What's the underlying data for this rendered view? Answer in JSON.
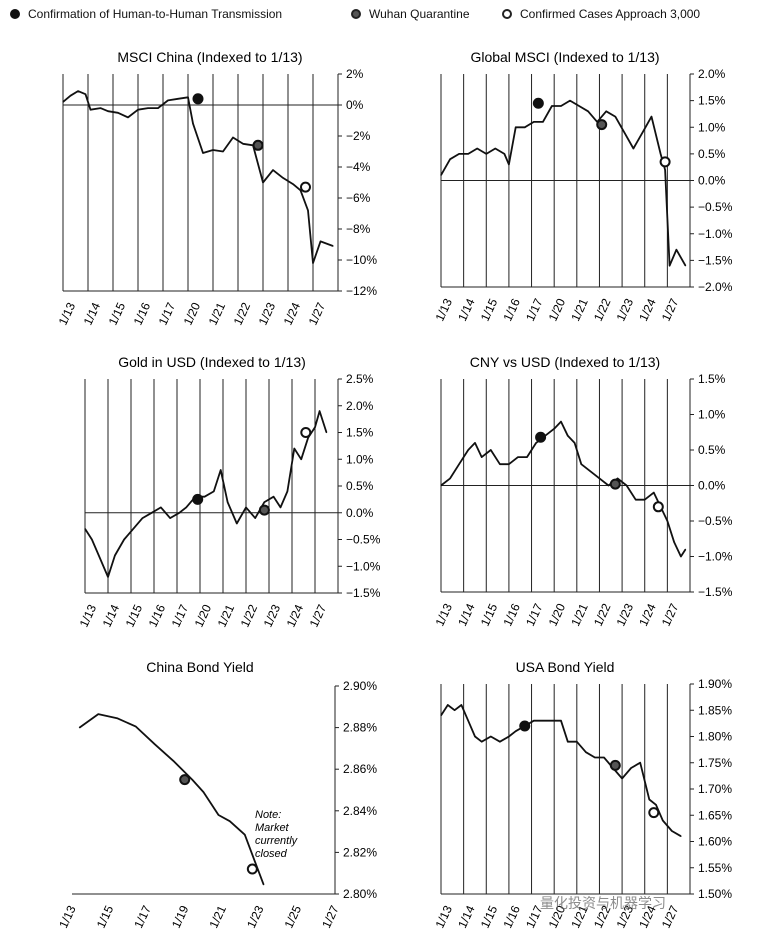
{
  "legend": [
    {
      "label": "Confirmation of Human-to-Human Transmission",
      "marker": "filled"
    },
    {
      "label": "Wuhan Quarantine",
      "marker": "mid"
    },
    {
      "label": "Confirmed Cases Approach 3,000",
      "marker": "ring"
    }
  ],
  "watermark": "量化投资与机器学习",
  "chart_data": [
    {
      "type": "line",
      "title": "MSCI China (Indexed to 1/13)",
      "dates": [
        "1/13",
        "1/14",
        "1/15",
        "1/16",
        "1/17",
        "1/20",
        "1/21",
        "1/22",
        "1/23",
        "1/24",
        "1/27"
      ],
      "ylim": [
        -12,
        2
      ],
      "yticks": [
        2,
        0,
        -2,
        -4,
        -6,
        -8,
        -10,
        -12
      ],
      "ytick_labels": [
        "2%",
        "0%",
        "−2%",
        "−4%",
        "−6%",
        "−8%",
        "−10%",
        "−12%"
      ],
      "series": [
        {
          "x": [
            0,
            0.3,
            0.6,
            0.9,
            1.1,
            1.5,
            1.8,
            2.2,
            2.6,
            3.0,
            3.4,
            3.8,
            4.2,
            4.6,
            5.0,
            5.2,
            5.6,
            6.0,
            6.4,
            6.8,
            7.2,
            7.6,
            8.0,
            8.4,
            8.8,
            9.2,
            9.5,
            9.8,
            10.0,
            10.3,
            10.8
          ],
          "y": [
            0.2,
            0.6,
            0.9,
            0.7,
            -0.3,
            -0.2,
            -0.4,
            -0.5,
            -0.8,
            -0.3,
            -0.2,
            -0.2,
            0.3,
            0.4,
            0.5,
            -1.2,
            -3.1,
            -2.9,
            -3.0,
            -2.1,
            -2.5,
            -2.6,
            -5.0,
            -4.2,
            -4.7,
            -5.1,
            -5.5,
            -6.8,
            -10.2,
            -8.8,
            -9.1
          ]
        }
      ],
      "markers": [
        {
          "x": 5.4,
          "y": 0.4,
          "type": "filled"
        },
        {
          "x": 7.8,
          "y": -2.6,
          "type": "mid"
        },
        {
          "x": 9.7,
          "y": -5.3,
          "type": "ring"
        }
      ]
    },
    {
      "type": "line",
      "title": "Global MSCI (Indexed to 1/13)",
      "dates": [
        "1/13",
        "1/14",
        "1/15",
        "1/16",
        "1/17",
        "1/20",
        "1/21",
        "1/22",
        "1/23",
        "1/24",
        "1/27"
      ],
      "ylim": [
        -2,
        2
      ],
      "yticks": [
        2,
        1.5,
        1,
        0.5,
        0,
        -0.5,
        -1,
        -1.5,
        -2
      ],
      "ytick_labels": [
        "2.0%",
        "1.5%",
        "1.0%",
        "0.5%",
        "0.0%",
        "−0.5%",
        "−1.0%",
        "−1.5%",
        "−2.0%"
      ],
      "series": [
        {
          "x": [
            0,
            0.4,
            0.8,
            1.2,
            1.6,
            2.0,
            2.4,
            2.8,
            3.0,
            3.3,
            3.7,
            4.1,
            4.5,
            4.9,
            5.3,
            5.7,
            6.1,
            6.5,
            6.9,
            7.3,
            7.7,
            8.1,
            8.5,
            8.9,
            9.3,
            9.7,
            9.9,
            10.1,
            10.4,
            10.8
          ],
          "y": [
            0.1,
            0.4,
            0.5,
            0.5,
            0.6,
            0.5,
            0.6,
            0.5,
            0.3,
            1.0,
            1.0,
            1.1,
            1.1,
            1.4,
            1.4,
            1.5,
            1.4,
            1.3,
            1.1,
            1.3,
            1.2,
            0.9,
            0.6,
            0.9,
            1.2,
            0.5,
            0.2,
            -1.6,
            -1.3,
            -1.6
          ]
        }
      ],
      "markers": [
        {
          "x": 4.3,
          "y": 1.45,
          "type": "filled"
        },
        {
          "x": 7.1,
          "y": 1.05,
          "type": "mid"
        },
        {
          "x": 9.9,
          "y": 0.35,
          "type": "ring"
        }
      ]
    },
    {
      "type": "line",
      "title": "Gold in USD (Indexed to 1/13)",
      "dates": [
        "1/13",
        "1/14",
        "1/15",
        "1/16",
        "1/17",
        "1/20",
        "1/21",
        "1/22",
        "1/23",
        "1/24",
        "1/27"
      ],
      "ylim": [
        -1.5,
        2.5
      ],
      "yticks": [
        2.5,
        2,
        1.5,
        1,
        0.5,
        0,
        -0.5,
        -1,
        -1.5
      ],
      "ytick_labels": [
        "2.5%",
        "2.0%",
        "1.5%",
        "1.0%",
        "0.5%",
        "0.0%",
        "−0.5%",
        "−1.0%",
        "−1.5%"
      ],
      "series": [
        {
          "x": [
            0,
            0.3,
            0.6,
            0.9,
            1.0,
            1.3,
            1.7,
            2.1,
            2.5,
            2.9,
            3.3,
            3.7,
            4.1,
            4.4,
            4.8,
            5.2,
            5.6,
            5.9,
            6.2,
            6.6,
            7.0,
            7.4,
            7.8,
            8.2,
            8.5,
            8.8,
            9.1,
            9.4,
            9.7,
            10.0,
            10.2,
            10.5
          ],
          "y": [
            -0.3,
            -0.5,
            -0.8,
            -1.1,
            -1.2,
            -0.8,
            -0.5,
            -0.3,
            -0.1,
            0.0,
            0.1,
            -0.1,
            0.0,
            0.1,
            0.3,
            0.3,
            0.4,
            0.8,
            0.2,
            -0.2,
            0.1,
            -0.1,
            0.2,
            0.3,
            0.1,
            0.4,
            1.2,
            1.0,
            1.4,
            1.6,
            1.9,
            1.5
          ]
        }
      ],
      "markers": [
        {
          "x": 4.9,
          "y": 0.25,
          "type": "filled"
        },
        {
          "x": 7.8,
          "y": 0.05,
          "type": "mid"
        },
        {
          "x": 9.6,
          "y": 1.5,
          "type": "ring"
        }
      ]
    },
    {
      "type": "line",
      "title": "CNY vs USD (Indexed to 1/13)",
      "dates": [
        "1/13",
        "1/14",
        "1/15",
        "1/16",
        "1/17",
        "1/20",
        "1/21",
        "1/22",
        "1/23",
        "1/24",
        "1/27"
      ],
      "ylim": [
        -1.5,
        1.5
      ],
      "yticks": [
        1.5,
        1,
        0.5,
        0,
        -0.5,
        -1,
        -1.5
      ],
      "ytick_labels": [
        "1.5%",
        "1.0%",
        "0.5%",
        "0.0%",
        "−0.5%",
        "−1.0%",
        "−1.5%"
      ],
      "series": [
        {
          "x": [
            0,
            0.4,
            0.8,
            1.2,
            1.5,
            1.8,
            2.2,
            2.6,
            3.0,
            3.4,
            3.8,
            4.2,
            4.6,
            5.0,
            5.3,
            5.6,
            5.9,
            6.2,
            6.6,
            7.0,
            7.4,
            7.8,
            8.2,
            8.6,
            9.0,
            9.4,
            9.7,
            10.0,
            10.3,
            10.6,
            10.8
          ],
          "y": [
            0.0,
            0.1,
            0.3,
            0.5,
            0.6,
            0.4,
            0.5,
            0.3,
            0.3,
            0.4,
            0.4,
            0.6,
            0.7,
            0.8,
            0.9,
            0.7,
            0.6,
            0.3,
            0.2,
            0.1,
            0.0,
            0.1,
            0.0,
            -0.2,
            -0.2,
            -0.1,
            -0.3,
            -0.5,
            -0.8,
            -1.0,
            -0.9
          ]
        }
      ],
      "markers": [
        {
          "x": 4.4,
          "y": 0.68,
          "type": "filled"
        },
        {
          "x": 7.7,
          "y": 0.02,
          "type": "mid"
        },
        {
          "x": 9.6,
          "y": -0.3,
          "type": "ring"
        }
      ]
    },
    {
      "type": "line",
      "title": "China Bond Yield",
      "dates": [
        "1/13",
        "1/15",
        "1/17",
        "1/19",
        "1/21",
        "1/23",
        "1/25",
        "1/27"
      ],
      "ylim": [
        2.8,
        2.9
      ],
      "yticks": [
        2.9,
        2.88,
        2.86,
        2.84,
        2.82,
        2.8
      ],
      "ytick_labels": [
        "2.90%",
        "2.88%",
        "2.86%",
        "2.84%",
        "2.82%",
        "2.80%"
      ],
      "series": [
        {
          "x": [
            0.2,
            0.7,
            1.2,
            1.7,
            2.2,
            2.7,
            3.2,
            3.5,
            3.9,
            4.2,
            4.6,
            5.1
          ],
          "y": [
            2.88,
            2.8865,
            2.8845,
            2.8805,
            2.872,
            2.864,
            2.855,
            2.849,
            2.838,
            2.835,
            2.8285,
            2.8045
          ]
        }
      ],
      "markers": [
        {
          "x": 3.0,
          "y": 2.855,
          "type": "mid"
        },
        {
          "x": 4.8,
          "y": 2.812,
          "type": "ring"
        }
      ],
      "note": "Note:\nMarket\ncurrently\nclosed"
    },
    {
      "type": "line",
      "title": "USA Bond Yield",
      "dates": [
        "1/13",
        "1/14",
        "1/15",
        "1/16",
        "1/17",
        "1/20",
        "1/21",
        "1/22",
        "1/23",
        "1/24",
        "1/27"
      ],
      "ylim": [
        1.5,
        1.9
      ],
      "yticks": [
        1.9,
        1.85,
        1.8,
        1.75,
        1.7,
        1.65,
        1.6,
        1.55,
        1.5
      ],
      "ytick_labels": [
        "1.90%",
        "1.85%",
        "1.80%",
        "1.75%",
        "1.70%",
        "1.65%",
        "1.60%",
        "1.55%",
        "1.50%"
      ],
      "series": [
        {
          "x": [
            0,
            0.3,
            0.6,
            0.9,
            1.2,
            1.5,
            1.8,
            2.2,
            2.6,
            3.0,
            3.3,
            3.7,
            4.1,
            4.5,
            4.9,
            5.3,
            5.6,
            6.0,
            6.4,
            6.8,
            7.2,
            7.6,
            8.0,
            8.4,
            8.8,
            9.2,
            9.5,
            9.8,
            10.2,
            10.6
          ],
          "y": [
            1.84,
            1.86,
            1.85,
            1.86,
            1.83,
            1.8,
            1.79,
            1.8,
            1.79,
            1.8,
            1.81,
            1.82,
            1.83,
            1.83,
            1.83,
            1.83,
            1.79,
            1.79,
            1.77,
            1.76,
            1.76,
            1.74,
            1.72,
            1.74,
            1.75,
            1.68,
            1.67,
            1.64,
            1.62,
            1.61
          ]
        }
      ],
      "markers": [
        {
          "x": 3.7,
          "y": 1.82,
          "type": "filled"
        },
        {
          "x": 7.7,
          "y": 1.745,
          "type": "mid"
        },
        {
          "x": 9.4,
          "y": 1.655,
          "type": "ring"
        }
      ]
    }
  ]
}
